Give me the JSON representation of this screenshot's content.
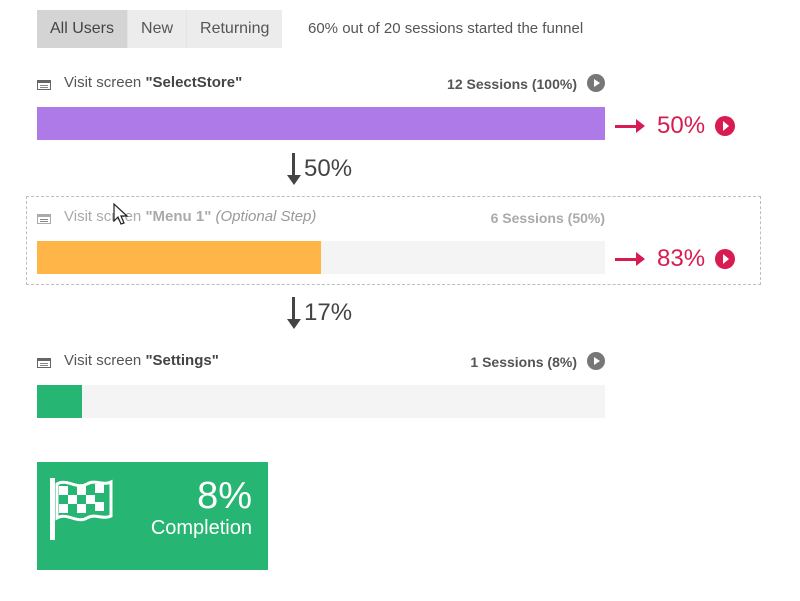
{
  "filters": {
    "all_label": "All Users",
    "new_label": "New",
    "returning_label": "Returning"
  },
  "summary_text": "60% out of 20 sessions started the funnel",
  "steps": [
    {
      "prefix": "Visit screen ",
      "name": "\"SelectStore\"",
      "optional": "",
      "sessions": "12 Sessions (100%)",
      "fill_percent": 100,
      "color": "#ae7ae8",
      "dropoff": "50%"
    },
    {
      "prefix": "Visit screen ",
      "name": "\"Menu 1\"",
      "optional": "(Optional Step)",
      "sessions": "6 Sessions (50%)",
      "fill_percent": 50,
      "color": "#ffb547",
      "dropoff": "83%"
    },
    {
      "prefix": "Visit screen ",
      "name": "\"Settings\"",
      "optional": "",
      "sessions": "1 Sessions (8%)",
      "fill_percent": 8,
      "color": "#26b573",
      "dropoff": ""
    }
  ],
  "conversions": [
    "50%",
    "17%"
  ],
  "completion": {
    "value": "8%",
    "label": "Completion",
    "color": "#26b573"
  },
  "colors": {
    "dropoff": "#d81b50",
    "track": "#f4f4f4"
  },
  "icons": {
    "step": "screen-icon",
    "play": "play-icon",
    "dropoff": "arrow-right-icon",
    "conversion": "arrow-down-icon",
    "completion": "checkered-flag-icon"
  }
}
